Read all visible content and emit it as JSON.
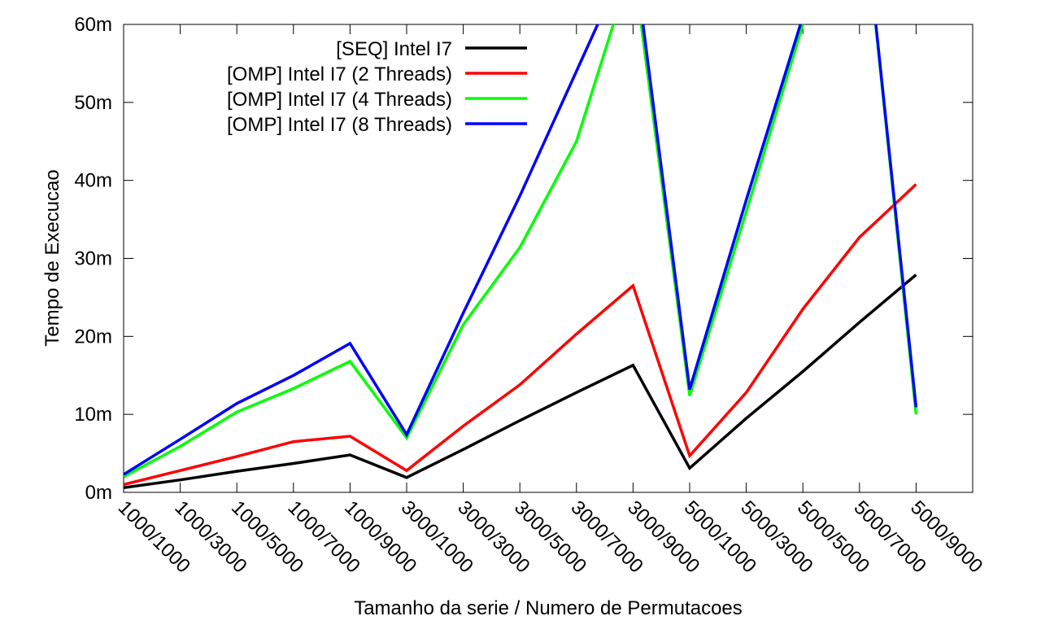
{
  "chart_data": {
    "type": "line",
    "xlabel": "Tamanho da serie / Numero de Permutacoes",
    "ylabel": "Tempo de Execucao",
    "ylim": [
      0,
      60
    ],
    "yticks": [
      0,
      10,
      20,
      30,
      40,
      50,
      60
    ],
    "ytick_labels": [
      "0m",
      "10m",
      "20m",
      "30m",
      "40m",
      "50m",
      "60m"
    ],
    "categories": [
      "1000/1000",
      "1000/3000",
      "1000/5000",
      "1000/7000",
      "1000/9000",
      "3000/1000",
      "3000/3000",
      "3000/5000",
      "3000/7000",
      "3000/9000",
      "5000/1000",
      "5000/3000",
      "5000/5000",
      "5000/7000",
      "5000/9000"
    ],
    "grid": false,
    "legend_position": "top-left",
    "series": [
      {
        "name": "[SEQ] Intel I7",
        "color": "#000000",
        "values": [
          0.6,
          1.6,
          2.7,
          3.7,
          4.8,
          1.9,
          5.5,
          9.2,
          12.8,
          16.3,
          3.1,
          9.5,
          15.5,
          21.8,
          27.9
        ]
      },
      {
        "name": "[OMP] Intel I7 (2 Threads)",
        "color": "#ff0000",
        "values": [
          1.0,
          2.8,
          4.6,
          6.5,
          7.2,
          2.8,
          8.5,
          13.8,
          20.3,
          26.5,
          4.7,
          12.8,
          23.5,
          32.7,
          39.5
        ]
      },
      {
        "name": "[OMP] Intel I7 (4 Threads)",
        "color": "#00ff00",
        "values": [
          2.0,
          5.9,
          10.3,
          13.3,
          16.8,
          7.0,
          21.5,
          31.4,
          45.0,
          68.0,
          12.4,
          36.0,
          60.0,
          80.0,
          10.0
        ]
      },
      {
        "name": "[OMP] Intel I7 (8 Threads)",
        "color": "#0000ff",
        "values": [
          2.3,
          6.8,
          11.4,
          15.0,
          19.1,
          7.4,
          23.0,
          38.0,
          54.0,
          70.0,
          13.2,
          37.5,
          61.0,
          80.0,
          10.9
        ]
      }
    ]
  }
}
